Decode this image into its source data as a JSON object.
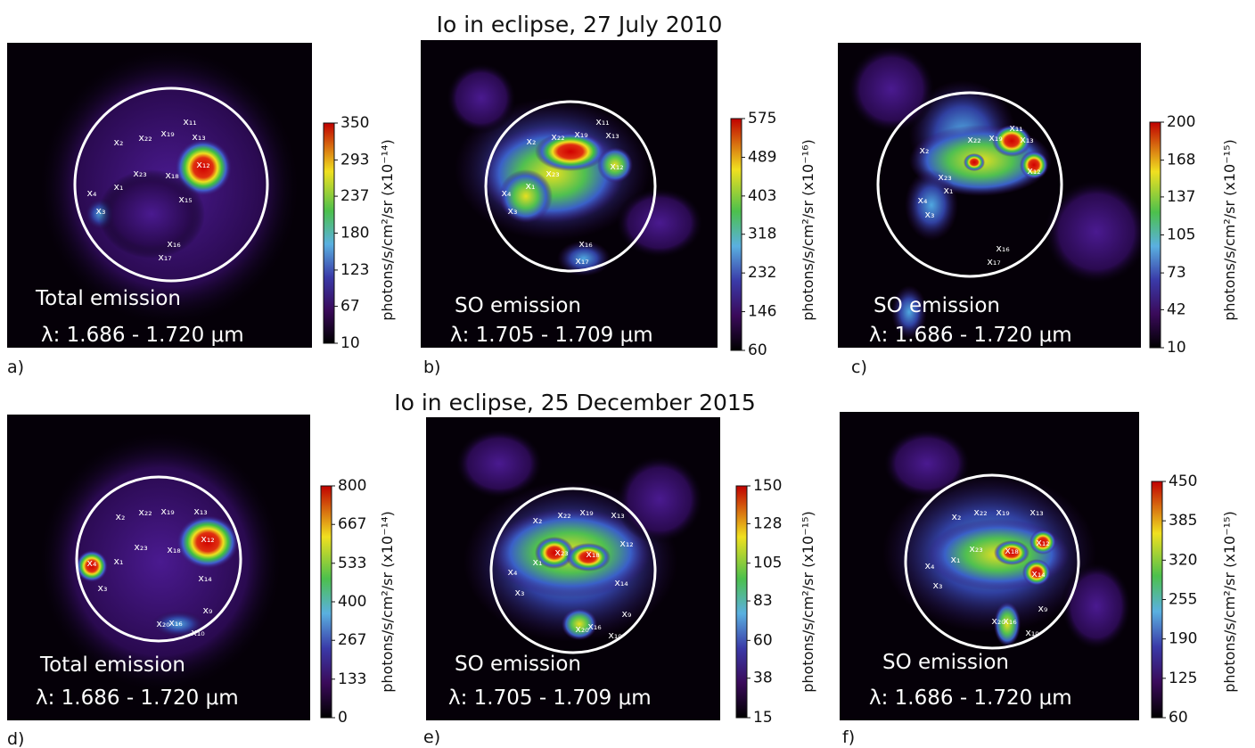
{
  "titles": [
    "Io in eclipse, 27 July 2010",
    "Io in eclipse, 25 December 2015"
  ],
  "panels": [
    {
      "label": "a)",
      "caption": [
        "Total emission",
        "λ: 1.686 - 1.720 μm"
      ],
      "colorbar": {
        "label": "photons/s/cm²/sr (x10⁻¹⁴)",
        "lim": [
          10,
          350
        ],
        "ticks": [
          10,
          67,
          123,
          180,
          237,
          293,
          350
        ]
      },
      "markers": [
        "x₁₁",
        "x₂",
        "x₂₂",
        "x₁₉",
        "x₁₃",
        "x₁₂",
        "x₂₃",
        "x₁₈",
        "x₄",
        "x₁",
        "x₁₅",
        "x₃",
        "x₁₆",
        "x₁₇"
      ]
    },
    {
      "label": "b)",
      "caption": [
        "SO emission",
        "λ: 1.705 - 1.709 μm"
      ],
      "colorbar": {
        "label": "photons/s/cm²/sr (x10⁻¹⁶)",
        "lim": [
          60,
          575
        ],
        "ticks": [
          60,
          146,
          232,
          318,
          403,
          489,
          575
        ]
      },
      "markers": [
        "x₁₁",
        "x₂",
        "x₂₂",
        "x₁₉",
        "x₁₃",
        "x₁₂",
        "x₂₃",
        "x₄",
        "x₁",
        "x₃",
        "x₁₆",
        "x₁₇"
      ]
    },
    {
      "label": "c)",
      "caption": [
        "SO emission",
        "λ: 1.686 - 1.720 μm"
      ],
      "colorbar": {
        "label": "photons/s/cm²/sr (x10⁻¹⁵)",
        "lim": [
          10,
          200
        ],
        "ticks": [
          10,
          42,
          73,
          105,
          137,
          168,
          200
        ]
      },
      "markers": [
        "x₁₁",
        "x₂",
        "x₂₂",
        "x₁₉",
        "x₁₃",
        "x₁₂",
        "x₂₃",
        "x₄",
        "x₁",
        "x₃",
        "x₁₆",
        "x₁₇"
      ]
    },
    {
      "label": "d)",
      "caption": [
        "Total emission",
        "λ: 1.686 - 1.720 μm"
      ],
      "colorbar": {
        "label": "photons/s/cm²/sr (x10⁻¹⁴)",
        "lim": [
          0,
          800
        ],
        "ticks": [
          0,
          133,
          267,
          400,
          533,
          667,
          800
        ]
      },
      "markers": [
        "x₂",
        "x₂₂",
        "x₁₉",
        "x₁₃",
        "x₁₂",
        "x₂₃",
        "x₁₈",
        "x₄",
        "x₁",
        "x₁₄",
        "x₃",
        "x₉",
        "x₂₀",
        "x₁₆",
        "x₁₀"
      ]
    },
    {
      "label": "e)",
      "caption": [
        "SO emission",
        "λ: 1.705 - 1.709 μm"
      ],
      "colorbar": {
        "label": "photons/s/cm²/sr (x10⁻¹⁵)",
        "lim": [
          15,
          150
        ],
        "ticks": [
          15,
          38,
          60,
          83,
          105,
          128,
          150
        ]
      },
      "markers": [
        "x₂",
        "x₂₂",
        "x₁₉",
        "x₁₃",
        "x₁₂",
        "x₂₃",
        "x₁₈",
        "x₄",
        "x₁",
        "x₁₄",
        "x₃",
        "x₉",
        "x₂₀",
        "x₁₆",
        "x₁₀"
      ]
    },
    {
      "label": "f)",
      "caption": [
        "SO emission",
        "λ: 1.686 - 1.720 μm"
      ],
      "colorbar": {
        "label": "photons/s/cm²/sr (x10⁻¹⁵)",
        "lim": [
          60,
          450
        ],
        "ticks": [
          60,
          125,
          190,
          255,
          320,
          385,
          450
        ]
      },
      "markers": [
        "x₂",
        "x₂₂",
        "x₁₉",
        "x₁₃",
        "x₁₂",
        "x₂₃",
        "x₁₈",
        "x₄",
        "x₁",
        "x₁₄",
        "x₃",
        "x₉",
        "x₂₀",
        "x₁₆",
        "x₁₀"
      ]
    }
  ]
}
